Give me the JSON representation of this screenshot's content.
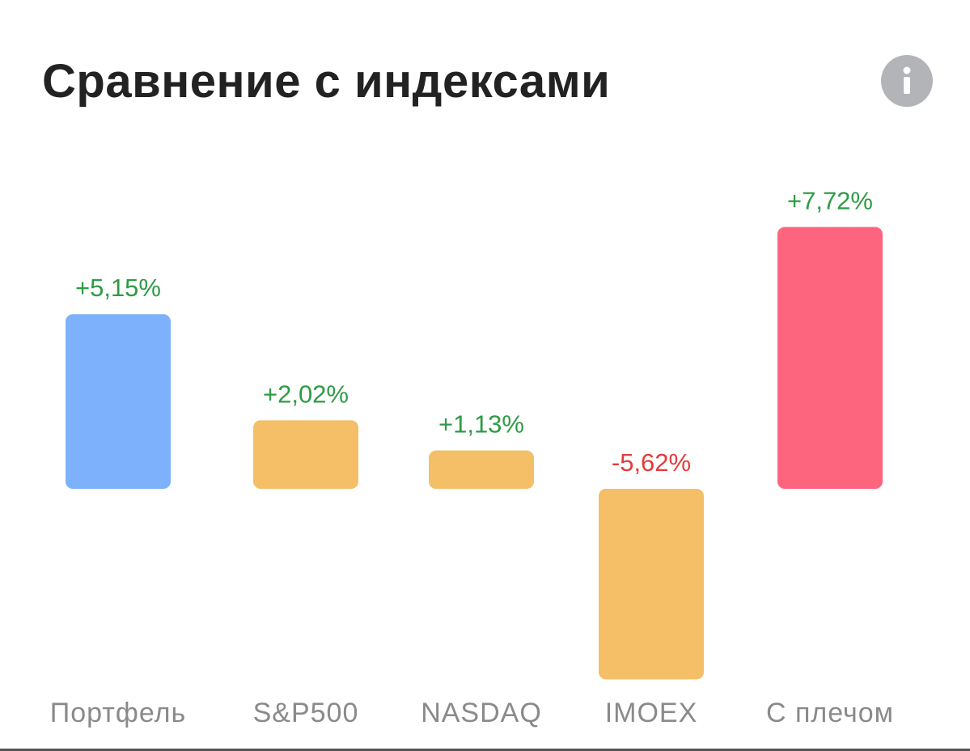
{
  "header": {
    "title": "Сравнение с индексами",
    "info_icon": "info-icon"
  },
  "chart_data": {
    "type": "bar",
    "title": "Сравнение с индексами",
    "xlabel": "",
    "ylabel": "",
    "categories": [
      "Портфель",
      "S&P500",
      "NASDAQ",
      "IMOEX",
      "С плечом"
    ],
    "values": [
      5.15,
      2.02,
      1.13,
      -5.62,
      7.72
    ],
    "labels": [
      "+5,15%",
      "+2,02%",
      "+1,13%",
      "-5,62%",
      "+7,72%"
    ],
    "bar_colors": [
      "#7db1fc",
      "#f4bf66",
      "#f4bf66",
      "#f4bf66",
      "#fd647e"
    ],
    "positive_label_color": "#2e9b46",
    "negative_label_color": "#e23b3b",
    "category_label_color": "#8a8a8a",
    "grid": false,
    "legend": "none",
    "ylim": [
      -5.62,
      7.72
    ]
  }
}
